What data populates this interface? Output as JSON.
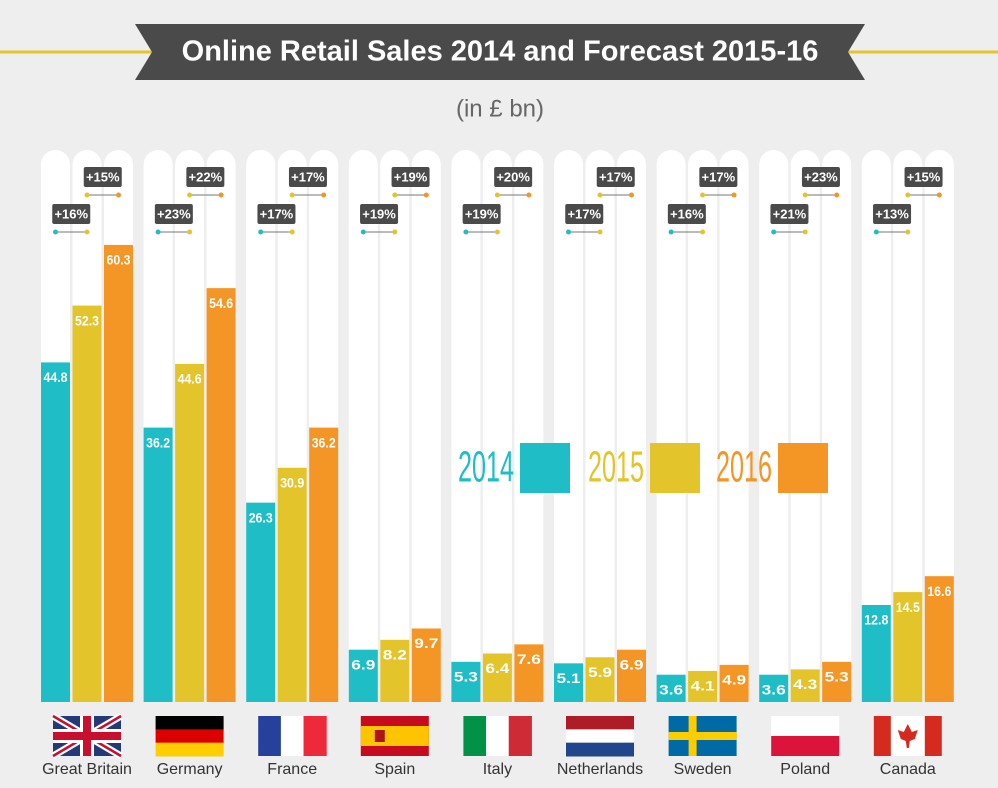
{
  "chart_data": {
    "type": "bar",
    "title": "Online Retail Sales 2014 and Forecast 2015-16",
    "subtitle": "(in £ bn)",
    "categories": [
      "Great Britain",
      "Germany",
      "France",
      "Spain",
      "Italy",
      "Netherlands",
      "Sweden",
      "Poland",
      "Canada"
    ],
    "series": [
      {
        "name": "2014",
        "color": "#1fbdc5",
        "values": [
          44.8,
          36.2,
          26.3,
          6.9,
          5.3,
          5.1,
          3.6,
          3.6,
          12.8
        ]
      },
      {
        "name": "2015",
        "color": "#e3c52b",
        "values": [
          52.3,
          44.6,
          30.9,
          8.2,
          6.4,
          5.9,
          4.1,
          4.3,
          14.5
        ]
      },
      {
        "name": "2016",
        "color": "#f39625",
        "values": [
          60.3,
          54.6,
          36.2,
          9.7,
          7.6,
          6.9,
          4.9,
          5.3,
          16.6
        ]
      }
    ],
    "growth_2015": [
      "+16%",
      "+23%",
      "+17%",
      "+19%",
      "+19%",
      "+17%",
      "+16%",
      "+21%",
      "+13%"
    ],
    "growth_2016": [
      "+15%",
      "+22%",
      "+17%",
      "+19%",
      "+20%",
      "+17%",
      "+17%",
      "+23%",
      "+15%"
    ]
  }
}
